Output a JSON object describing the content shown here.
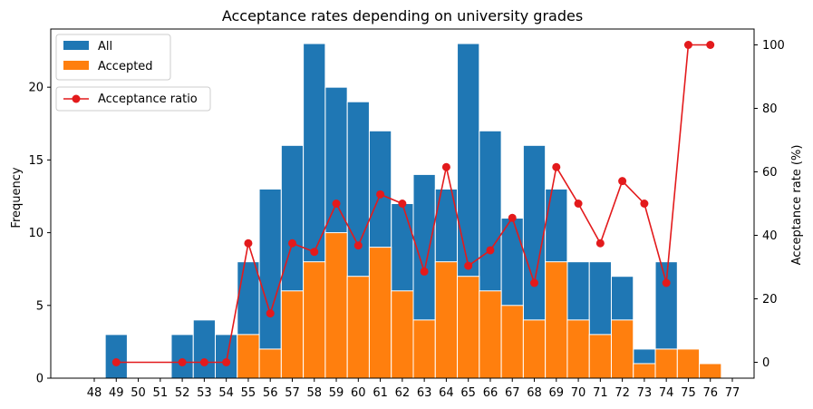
{
  "chart_data": {
    "type": "bar",
    "title": "Acceptance rates depending on university grades",
    "ylabel": "Frequency",
    "y2label": "Acceptance rate (%)",
    "xlabel": "",
    "categories": [
      48,
      49,
      50,
      51,
      52,
      53,
      54,
      55,
      56,
      57,
      58,
      59,
      60,
      61,
      62,
      63,
      64,
      65,
      66,
      67,
      68,
      69,
      70,
      71,
      72,
      73,
      74,
      75,
      76,
      77
    ],
    "ylim": [
      0,
      24
    ],
    "y2lim": [
      -5,
      105
    ],
    "yticks": [
      0,
      5,
      10,
      15,
      20
    ],
    "y2ticks": [
      0,
      20,
      40,
      60,
      80,
      100
    ],
    "series": [
      {
        "name": "All",
        "type": "bar",
        "color": "#1f77b4",
        "x": [
          49,
          52,
          53,
          54,
          55,
          56,
          57,
          58,
          59,
          60,
          61,
          62,
          63,
          64,
          65,
          66,
          67,
          68,
          69,
          70,
          71,
          72,
          73,
          74,
          75,
          76
        ],
        "values": [
          3,
          3,
          4,
          3,
          8,
          13,
          16,
          23,
          20,
          19,
          17,
          12,
          14,
          13,
          23,
          17,
          11,
          16,
          13,
          8,
          8,
          7,
          2,
          8,
          2,
          1
        ]
      },
      {
        "name": "Accepted",
        "type": "bar",
        "color": "#ff7f0e",
        "x": [
          49,
          52,
          53,
          54,
          55,
          56,
          57,
          58,
          59,
          60,
          61,
          62,
          63,
          64,
          65,
          66,
          67,
          68,
          69,
          70,
          71,
          72,
          73,
          74,
          75,
          76
        ],
        "values": [
          0,
          0,
          0,
          0,
          3,
          2,
          6,
          8,
          10,
          7,
          9,
          6,
          4,
          8,
          7,
          6,
          5,
          4,
          8,
          4,
          3,
          4,
          1,
          2,
          2,
          1
        ]
      },
      {
        "name": "Acceptance ratio",
        "type": "line",
        "axis": "right",
        "color": "#e31a1c",
        "x": [
          49,
          52,
          53,
          54,
          55,
          56,
          57,
          58,
          59,
          60,
          61,
          62,
          63,
          64,
          65,
          66,
          67,
          68,
          69,
          70,
          71,
          72,
          73,
          74,
          75,
          76
        ],
        "values": [
          0,
          0,
          0,
          0,
          37.5,
          15.4,
          37.5,
          34.8,
          50,
          36.8,
          52.9,
          50,
          28.6,
          61.5,
          30.4,
          35.3,
          45.5,
          25,
          61.5,
          50,
          37.5,
          57.1,
          50,
          25,
          100,
          100
        ]
      }
    ],
    "legend": [
      {
        "label": "All",
        "placement": "top-left"
      },
      {
        "label": "Accepted",
        "placement": "top-left"
      },
      {
        "label": "Acceptance ratio",
        "placement": "top-left"
      }
    ]
  }
}
